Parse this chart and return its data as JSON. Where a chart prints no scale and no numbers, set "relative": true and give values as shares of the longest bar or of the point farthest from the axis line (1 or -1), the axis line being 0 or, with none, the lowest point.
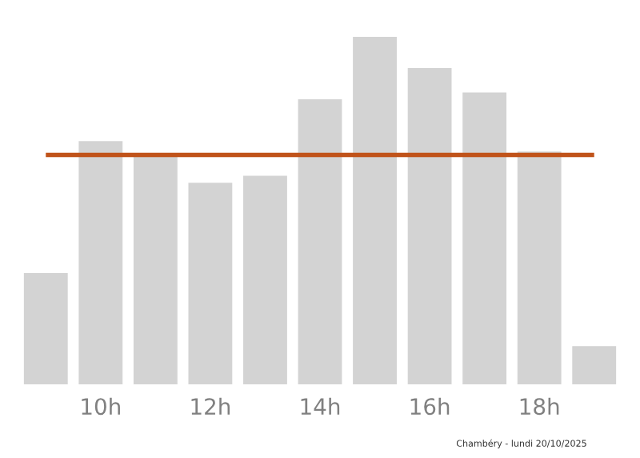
{
  "chart_data": {
    "type": "bar",
    "relative": true,
    "categories": [
      null,
      "10h",
      null,
      "12h",
      null,
      "14h",
      null,
      "16h",
      null,
      "18h",
      null
    ],
    "values": [
      0.32,
      0.7,
      0.66,
      0.58,
      0.6,
      0.82,
      1,
      0.91,
      0.84,
      0.67,
      0.11
    ],
    "color": "#d3d3d3",
    "ref_lines": [
      {
        "axis": "y",
        "value": 0.66,
        "color": "#c0531a",
        "line_style": "solid"
      }
    ],
    "annotations": [
      "Chambéry - lundi 20/10/2025"
    ],
    "grid": false,
    "legend": false
  }
}
